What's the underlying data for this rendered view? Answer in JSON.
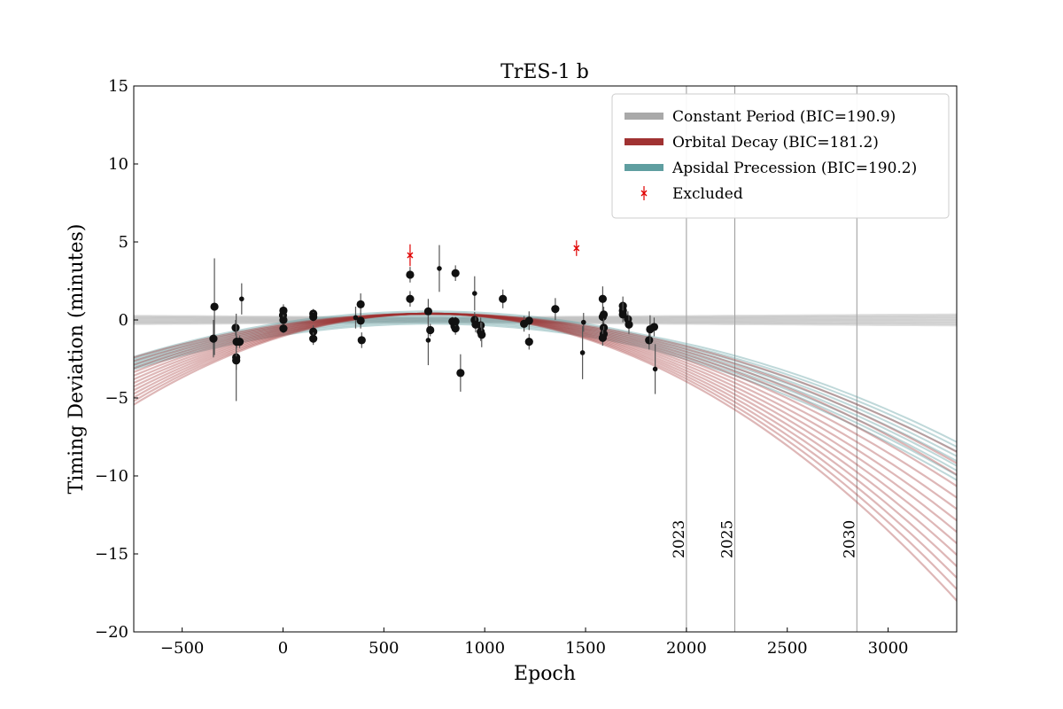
{
  "chart_data": {
    "type": "scatter",
    "title": "TrES-1 b",
    "xlabel": "Epoch",
    "ylabel": "Timing Deviation (minutes)",
    "xlim": [
      -740,
      3340
    ],
    "ylim": [
      -20,
      15
    ],
    "xticks": [
      -500,
      0,
      500,
      1000,
      1500,
      2000,
      2500,
      3000
    ],
    "xtick_labels": [
      "−500",
      "0",
      "500",
      "1000",
      "1500",
      "2000",
      "2500",
      "3000"
    ],
    "yticks": [
      -20,
      -15,
      -10,
      -5,
      0,
      5,
      10,
      15
    ],
    "ytick_labels": [
      "−20",
      "−15",
      "−10",
      "−5",
      "0",
      "5",
      "10",
      "15"
    ],
    "grid": false,
    "legend_position": "top-right",
    "models": [
      {
        "name": "Constant Period (BIC=190.9)",
        "color": "#a9a9a9",
        "kind": "constant",
        "spread": 0.4
      },
      {
        "name": "Orbital Decay (BIC=181.2)",
        "color": "#a03232",
        "kind": "quadratic",
        "a": -2e-06,
        "vertex": 730,
        "peak": 0.4,
        "spread": 0.35
      },
      {
        "name": "Apsidal Precession (BIC=190.2)",
        "color": "#5f9ea0",
        "kind": "precession",
        "spread": 0.3
      }
    ],
    "excluded_label": "Excluded",
    "excluded_color": "#e00000",
    "year_markers": [
      {
        "label": "2023",
        "epoch": 2000
      },
      {
        "label": "2025",
        "epoch": 2240
      },
      {
        "label": "2030",
        "epoch": 2845
      }
    ],
    "points": [
      {
        "x": -340,
        "y": 0.85,
        "e": 3.1,
        "s": "l"
      },
      {
        "x": -345,
        "y": -1.2,
        "e": 1.2,
        "s": "l"
      },
      {
        "x": -235,
        "y": -0.5,
        "e": 0.5,
        "s": "l"
      },
      {
        "x": -232,
        "y": -2.4,
        "e": 2.8,
        "s": "l"
      },
      {
        "x": -232,
        "y": -2.6,
        "e": 0.6,
        "s": "l"
      },
      {
        "x": -230,
        "y": -1.4,
        "e": 0.4,
        "s": "l"
      },
      {
        "x": -215,
        "y": -1.4,
        "e": 0.4,
        "s": "l"
      },
      {
        "x": -205,
        "y": 1.35,
        "e": 1.0,
        "s": "s"
      },
      {
        "x": 0,
        "y": 0.3,
        "e": 0.5,
        "s": "l"
      },
      {
        "x": 2,
        "y": 0.0,
        "e": 0.3,
        "s": "l"
      },
      {
        "x": 2,
        "y": 0.6,
        "e": 0.4,
        "s": "l"
      },
      {
        "x": 2,
        "y": -0.55,
        "e": 0.3,
        "s": "l"
      },
      {
        "x": 150,
        "y": 0.4,
        "e": 0.3,
        "s": "l"
      },
      {
        "x": 150,
        "y": 0.2,
        "e": 0.3,
        "s": "l"
      },
      {
        "x": 150,
        "y": -0.75,
        "e": 0.4,
        "s": "l"
      },
      {
        "x": 150,
        "y": -1.2,
        "e": 0.4,
        "s": "l"
      },
      {
        "x": 360,
        "y": 0.15,
        "e": 0.7,
        "s": "s"
      },
      {
        "x": 385,
        "y": 1.0,
        "e": 0.7,
        "s": "l"
      },
      {
        "x": 385,
        "y": -0.05,
        "e": 0.5,
        "s": "l"
      },
      {
        "x": 390,
        "y": -1.3,
        "e": 0.5,
        "s": "l"
      },
      {
        "x": 630,
        "y": 2.9,
        "e": 0.5,
        "s": "l"
      },
      {
        "x": 630,
        "y": 1.35,
        "e": 0.5,
        "s": "l"
      },
      {
        "x": 720,
        "y": 0.55,
        "e": 0.8,
        "s": "l"
      },
      {
        "x": 720,
        "y": -1.3,
        "e": 1.6,
        "s": "s"
      },
      {
        "x": 730,
        "y": -0.65,
        "e": 0.4,
        "s": "l"
      },
      {
        "x": 775,
        "y": 3.3,
        "e": 1.5,
        "s": "s"
      },
      {
        "x": 840,
        "y": -0.1,
        "e": 0.3,
        "s": "l"
      },
      {
        "x": 850,
        "y": -0.4,
        "e": 0.4,
        "s": "l"
      },
      {
        "x": 855,
        "y": 3.0,
        "e": 0.5,
        "s": "l"
      },
      {
        "x": 855,
        "y": -0.55,
        "e": 0.4,
        "s": "l"
      },
      {
        "x": 855,
        "y": -0.1,
        "e": 0.3,
        "s": "l"
      },
      {
        "x": 880,
        "y": -3.4,
        "e": 1.2,
        "s": "l"
      },
      {
        "x": 950,
        "y": 0.0,
        "e": 0.5,
        "s": "l"
      },
      {
        "x": 950,
        "y": 1.7,
        "e": 1.1,
        "s": "s"
      },
      {
        "x": 955,
        "y": -0.3,
        "e": 0.5,
        "s": "l"
      },
      {
        "x": 980,
        "y": -0.35,
        "e": 0.5,
        "s": "l"
      },
      {
        "x": 980,
        "y": -0.75,
        "e": 0.6,
        "s": "l"
      },
      {
        "x": 985,
        "y": -0.95,
        "e": 0.8,
        "s": "l"
      },
      {
        "x": 1090,
        "y": 1.35,
        "e": 0.6,
        "s": "l"
      },
      {
        "x": 1195,
        "y": -0.25,
        "e": 0.5,
        "s": "l"
      },
      {
        "x": 1220,
        "y": -0.05,
        "e": 0.6,
        "s": "l"
      },
      {
        "x": 1220,
        "y": -1.4,
        "e": 0.5,
        "s": "l"
      },
      {
        "x": 1350,
        "y": 0.7,
        "e": 0.7,
        "s": "l"
      },
      {
        "x": 1485,
        "y": -2.1,
        "e": 1.7,
        "s": "s"
      },
      {
        "x": 1490,
        "y": -0.15,
        "e": 0.6,
        "s": "s"
      },
      {
        "x": 1585,
        "y": 0.2,
        "e": 0.5,
        "s": "l"
      },
      {
        "x": 1585,
        "y": 1.35,
        "e": 0.8,
        "s": "l"
      },
      {
        "x": 1590,
        "y": 0.35,
        "e": 0.5,
        "s": "l"
      },
      {
        "x": 1590,
        "y": -0.5,
        "e": 0.5,
        "s": "l"
      },
      {
        "x": 1590,
        "y": -0.9,
        "e": 0.5,
        "s": "l"
      },
      {
        "x": 1585,
        "y": -1.15,
        "e": 0.5,
        "s": "l"
      },
      {
        "x": 1685,
        "y": 0.9,
        "e": 0.6,
        "s": "l"
      },
      {
        "x": 1685,
        "y": 0.6,
        "e": 0.5,
        "s": "l"
      },
      {
        "x": 1685,
        "y": 0.35,
        "e": 0.5,
        "s": "l"
      },
      {
        "x": 1710,
        "y": 0.05,
        "e": 0.5,
        "s": "l"
      },
      {
        "x": 1715,
        "y": -0.3,
        "e": 0.6,
        "s": "l"
      },
      {
        "x": 1815,
        "y": -1.3,
        "e": 0.6,
        "s": "l"
      },
      {
        "x": 1820,
        "y": -0.6,
        "e": 0.9,
        "s": "l"
      },
      {
        "x": 1840,
        "y": -0.45,
        "e": 0.6,
        "s": "l"
      },
      {
        "x": 1845,
        "y": -3.15,
        "e": 1.6,
        "s": "s"
      }
    ],
    "excluded_points": [
      {
        "x": 630,
        "y": 4.15,
        "e": 0.7
      },
      {
        "x": 1455,
        "y": 4.6,
        "e": 0.5
      }
    ]
  }
}
